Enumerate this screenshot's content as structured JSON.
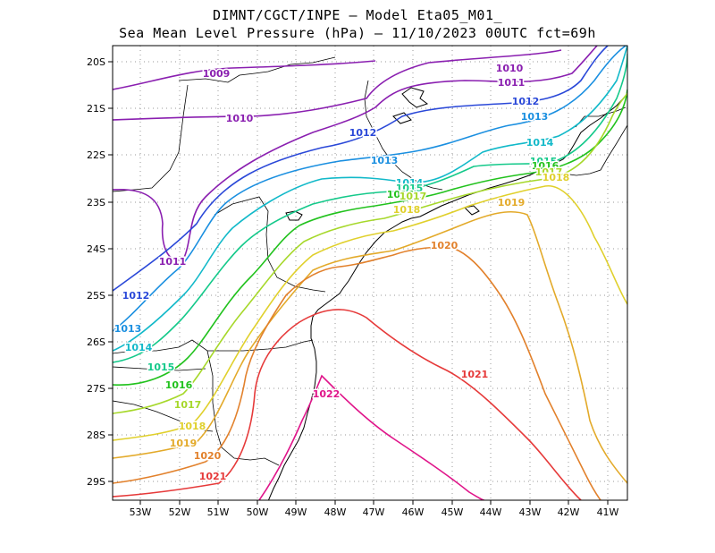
{
  "title": {
    "line1": "DIMNT/CGCT/INPE —  Model Eta05_M01_",
    "line2": "Sea Mean Level Pressure (hPa) — 11/10/2023 00UTC fct=69h"
  },
  "axes": {
    "lon_labels": [
      "53W",
      "52W",
      "51W",
      "50W",
      "49W",
      "48W",
      "47W",
      "46W",
      "45W",
      "44W",
      "43W",
      "42W",
      "41W"
    ],
    "lat_labels": [
      "20S",
      "21S",
      "22S",
      "23S",
      "24S",
      "25S",
      "26S",
      "27S",
      "28S",
      "29S"
    ]
  },
  "contours": [
    {
      "label": "1009",
      "color": "#8a1fb0"
    },
    {
      "label": "1010",
      "color": "#8a1fb0"
    },
    {
      "label": "1011",
      "color": "#8a1fb0"
    },
    {
      "label": "1012",
      "color": "#2a48d8"
    },
    {
      "label": "1013",
      "color": "#1a8fe0"
    },
    {
      "label": "1014",
      "color": "#12b9c9"
    },
    {
      "label": "1015",
      "color": "#14c98a"
    },
    {
      "label": "1016",
      "color": "#22c21e"
    },
    {
      "label": "1017",
      "color": "#a6d82a"
    },
    {
      "label": "1018",
      "color": "#e0d02c"
    },
    {
      "label": "1019",
      "color": "#e3aa2a"
    },
    {
      "label": "1020",
      "color": "#e2812c"
    },
    {
      "label": "1021",
      "color": "#e63a3a"
    },
    {
      "label": "1022",
      "color": "#e0158a"
    }
  ]
}
